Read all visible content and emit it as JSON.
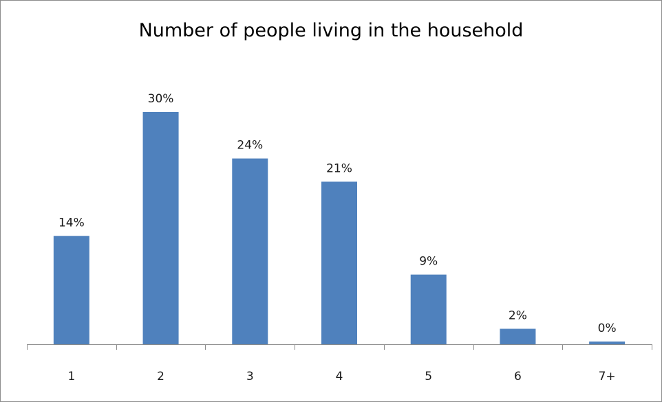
{
  "colors": {
    "bar": "#4f81bd",
    "axis": "#8c8c8c"
  },
  "chart_data": {
    "type": "bar",
    "title": "Number of people living in the household",
    "xlabel": "",
    "ylabel": "",
    "categories": [
      "1",
      "2",
      "3",
      "4",
      "5",
      "6",
      "7+"
    ],
    "values": [
      14,
      30,
      24,
      21,
      9,
      2,
      0
    ],
    "data_labels": [
      "14%",
      "30%",
      "24%",
      "21%",
      "9%",
      "2%",
      "0%"
    ],
    "ylim": [
      0,
      30
    ],
    "grid": false,
    "legend": "none"
  }
}
